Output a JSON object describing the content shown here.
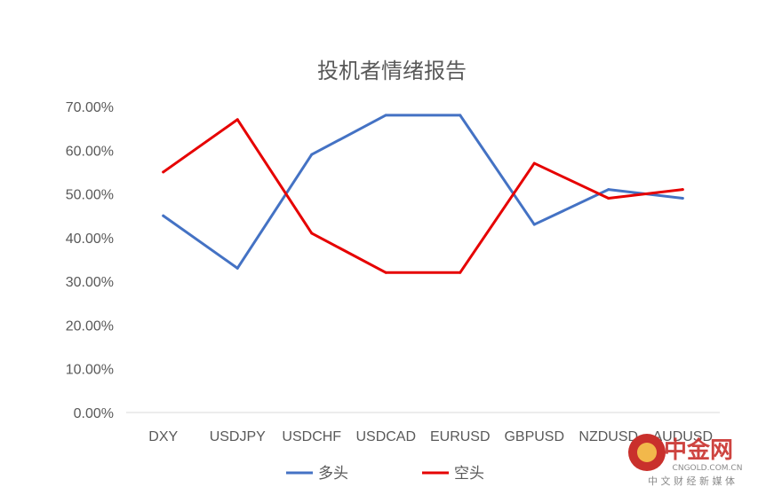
{
  "chart_data": {
    "type": "line",
    "title": "投机者情绪报告",
    "categories": [
      "DXY",
      "USDJPY",
      "USDCHF",
      "USDCAD",
      "EURUSD",
      "GBPUSD",
      "NZDUSD",
      "AUDUSD"
    ],
    "series": [
      {
        "name": "多头",
        "color": "#4472C4",
        "values": [
          45,
          33,
          59,
          68,
          68,
          43,
          51,
          49
        ]
      },
      {
        "name": "空头",
        "color": "#E60000",
        "values": [
          55,
          67,
          41,
          32,
          32,
          57,
          49,
          51
        ]
      }
    ],
    "y_ticks": [
      "0.00%",
      "10.00%",
      "20.00%",
      "30.00%",
      "40.00%",
      "50.00%",
      "60.00%",
      "70.00%"
    ],
    "ylim": [
      0,
      70
    ],
    "grid": false,
    "legend_position": "bottom"
  },
  "watermark": {
    "logo_text": "中金网",
    "site": "CNGOLD.COM.CN",
    "tagline": "中 文 财 经 新 媒 体",
    "logo_color": "#C9302C"
  }
}
